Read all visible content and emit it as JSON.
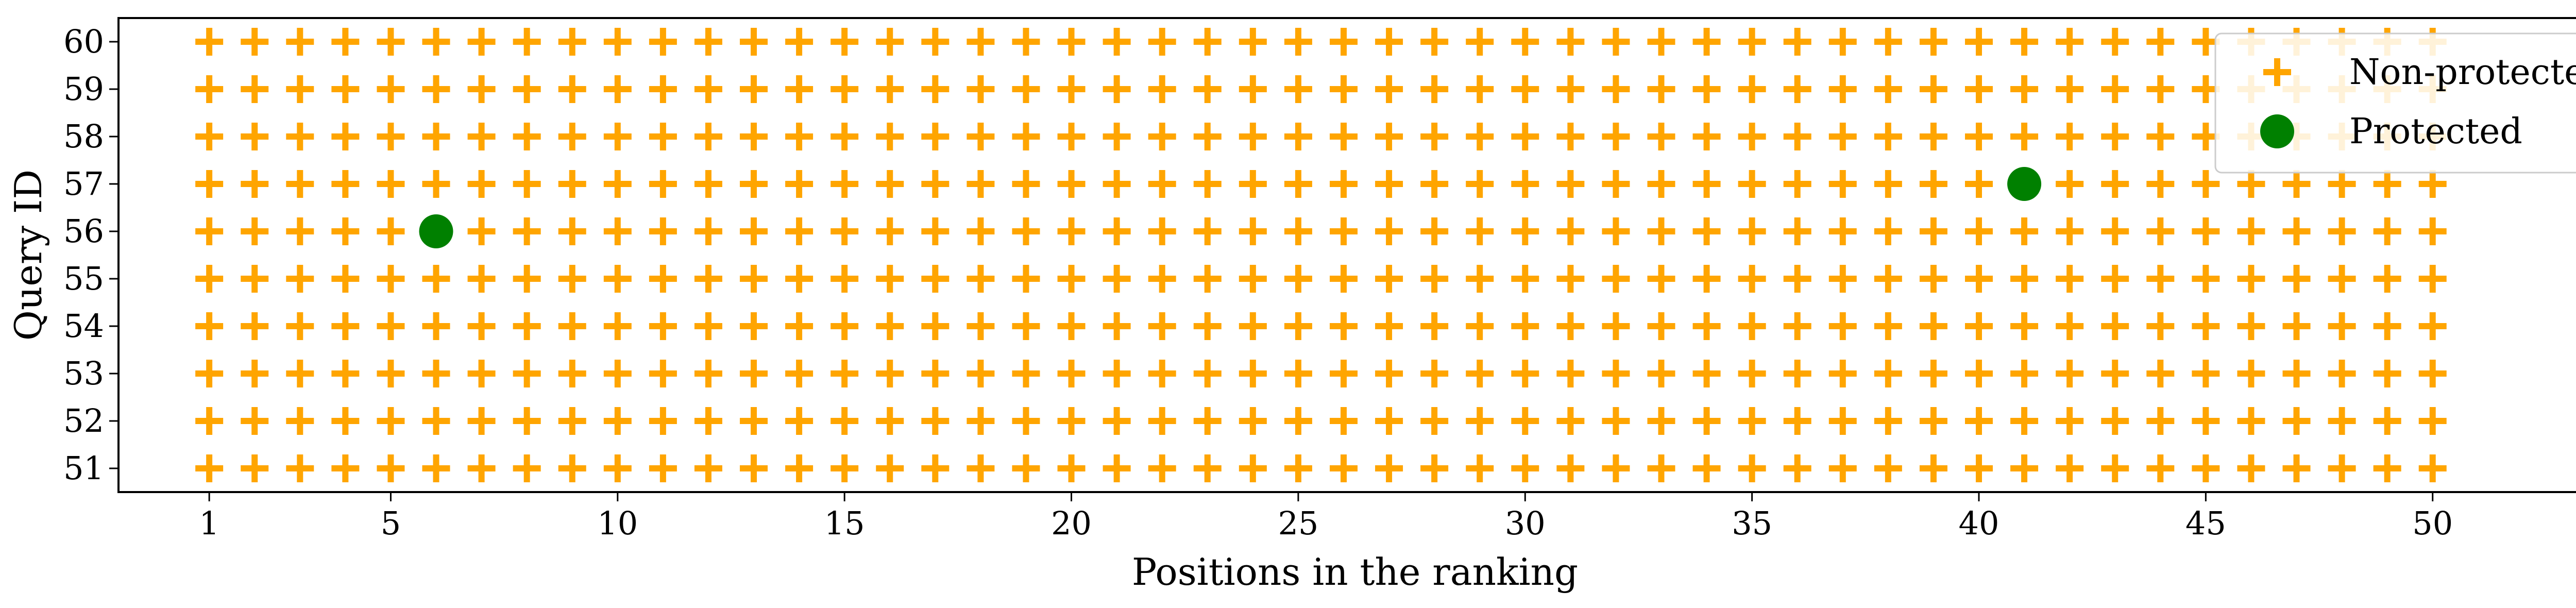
{
  "chart_data": {
    "type": "scatter",
    "title": "",
    "xlabel": "Positions in the ranking",
    "ylabel": "Query ID",
    "xlim": [
      -1,
      53.5
    ],
    "ylim": [
      50.5,
      60.5
    ],
    "xticks": [
      1,
      5,
      10,
      15,
      20,
      25,
      30,
      35,
      40,
      45,
      50
    ],
    "yticks": [
      51,
      52,
      53,
      54,
      55,
      56,
      57,
      58,
      59,
      60
    ],
    "grid": false,
    "legend_position": "top-right",
    "positions_range": [
      1,
      50
    ],
    "query_ids": [
      51,
      52,
      53,
      54,
      55,
      56,
      57,
      58,
      59,
      60
    ],
    "series": [
      {
        "name": "Non-protected",
        "marker": "plus",
        "color": "#FFA500",
        "default_fill": true
      },
      {
        "name": "Protected",
        "marker": "circle",
        "color": "#008000",
        "points": [
          {
            "x": 6,
            "y": 56
          },
          {
            "x": 41,
            "y": 57
          }
        ]
      }
    ]
  }
}
